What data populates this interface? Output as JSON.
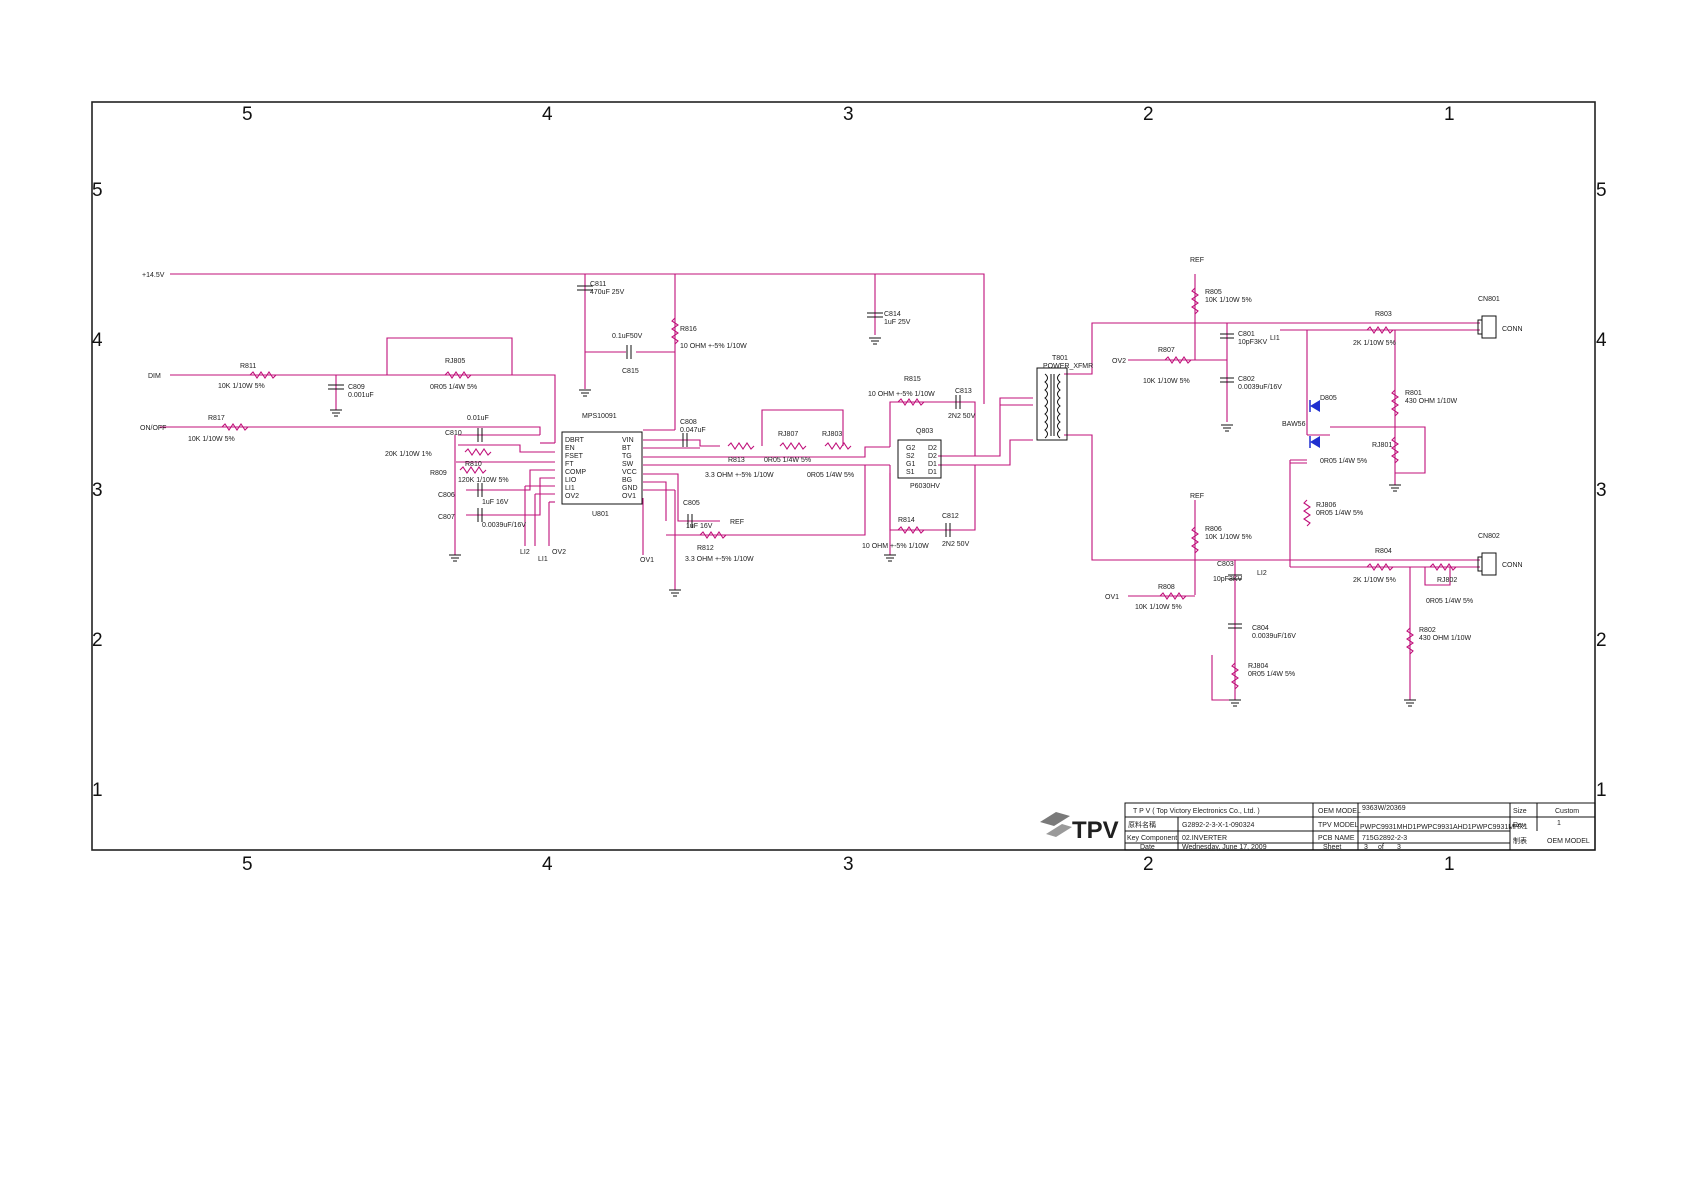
{
  "zones": {
    "columns": [
      "5",
      "4",
      "3",
      "2",
      "1"
    ],
    "rows": [
      "5",
      "4",
      "3",
      "2",
      "1"
    ]
  },
  "net_labels": {
    "v14_5": "+14.5V",
    "dim": "DIM",
    "on_off": "ON/OFF",
    "ref_top": "REF",
    "ref_mid": "REF",
    "ref_u": "REF",
    "ov2_in": "OV2",
    "ov1_in": "OV1",
    "li1_in": "LI1",
    "li2_in": "LI2",
    "li2_pin": "LI2",
    "li1_pin": "LI1",
    "ov2_pin": "OV2",
    "ov1_pin": "OV1",
    "conn1": "CONN",
    "conn2": "CONN"
  },
  "components": {
    "c811": {
      "ref": "C811",
      "value": "470uF 25V"
    },
    "c814": {
      "ref": "C814",
      "value": "1uF 25V"
    },
    "c815": {
      "ref": "C815",
      "value": "0.1uF50V"
    },
    "r816": {
      "ref": "R816",
      "value": "10 OHM +-5% 1/10W"
    },
    "r811": {
      "ref": "R811",
      "value": "10K 1/10W 5%"
    },
    "c809": {
      "ref": "C809",
      "value": "0.001uF"
    },
    "rj805": {
      "ref": "RJ805",
      "value": "0R05 1/4W 5%"
    },
    "r817": {
      "ref": "R817",
      "value": "10K 1/10W 5%"
    },
    "c810": {
      "ref": "C810",
      "value": "0.01uF"
    },
    "r810": {
      "ref": "R810",
      "value": "20K 1/10W 1%"
    },
    "r809": {
      "ref": "R809",
      "value": "120K 1/10W 5%"
    },
    "c806": {
      "ref": "C806",
      "value": "1uF 16V"
    },
    "c807": {
      "ref": "C807",
      "value": "0.0039uF/16V"
    },
    "u801": {
      "ref": "U801",
      "value": "MPS10091",
      "pins_left": [
        "DBRT",
        "EN",
        "FSET",
        "FT",
        "COMP",
        "LIO",
        "LI1",
        "OV2"
      ],
      "pins_right": [
        "VIN",
        "BT",
        "TG",
        "SW",
        "VCC",
        "BG",
        "GND",
        "OV1"
      ]
    },
    "c808": {
      "ref": "C808",
      "value": "0.047uF"
    },
    "c805": {
      "ref": "C805",
      "value": "1uF 16V"
    },
    "r812": {
      "ref": "R812",
      "value": "3.3 OHM +-5% 1/10W"
    },
    "r813": {
      "ref": "R813",
      "value": "3.3 OHM +-5% 1/10W"
    },
    "rj807": {
      "ref": "RJ807",
      "value": "0R05 1/4W 5%"
    },
    "rj803": {
      "ref": "RJ803",
      "value": "0R05 1/4W 5%"
    },
    "r815": {
      "ref": "R815",
      "value": "10 OHM +-5% 1/10W"
    },
    "c813": {
      "ref": "C813",
      "value": "2N2 50V"
    },
    "q803": {
      "ref": "Q803",
      "value": "P6030HV",
      "pins_left": [
        "G2",
        "S2",
        "G1",
        "S1"
      ],
      "pins_right": [
        "D2",
        "D2",
        "D1",
        "D1"
      ]
    },
    "r814": {
      "ref": "R814",
      "value": "10 OHM +-5% 1/10W"
    },
    "c812": {
      "ref": "C812",
      "value": "2N2 50V"
    },
    "t801": {
      "ref": "T801",
      "value": "POWER_XFMR"
    },
    "r805": {
      "ref": "R805",
      "value": "10K 1/10W 5%"
    },
    "c801": {
      "ref": "C801",
      "value": "10pF3KV"
    },
    "r807": {
      "ref": "R807",
      "value": "10K 1/10W 5%"
    },
    "c802": {
      "ref": "C802",
      "value": "0.0039uF/16V"
    },
    "r803": {
      "ref": "R803",
      "value": "2K 1/10W 5%"
    },
    "r801": {
      "ref": "R801",
      "value": "430 OHM 1/10W"
    },
    "d805": {
      "ref": "D805",
      "value": "BAW56"
    },
    "rj801": {
      "ref": "RJ801",
      "value": "0R05 1/4W 5%"
    },
    "rj806": {
      "ref": "RJ806",
      "value": "0R05 1/4W 5%"
    },
    "r806": {
      "ref": "R806",
      "value": "10K 1/10W 5%"
    },
    "c803": {
      "ref": "C803",
      "value": "10pF3KV"
    },
    "r808": {
      "ref": "R808",
      "value": "10K 1/10W 5%"
    },
    "c804": {
      "ref": "C804",
      "value": "0.0039uF/16V"
    },
    "rj804": {
      "ref": "RJ804",
      "value": "0R05 1/4W 5%"
    },
    "r804": {
      "ref": "R804",
      "value": "2K 1/10W 5%"
    },
    "rj802": {
      "ref": "RJ802",
      "value": "0R05 1/4W 5%"
    },
    "r802": {
      "ref": "R802",
      "value": "430 OHM 1/10W"
    },
    "cn801": {
      "ref": "CN801"
    },
    "cn802": {
      "ref": "CN802"
    }
  },
  "title_block": {
    "logo_text": "TPV",
    "company": "T P V  ( Top  Victory  Electronics  Co.,  Ltd. )",
    "oem_model_label": "OEM MODEL",
    "oem_model_value": "9363W/20369",
    "size_label": "Size",
    "size_value": "Custom",
    "project_name_label": "原料名稱",
    "project_name_value": "G2892-2-3-X-1-090324",
    "tpv_model_label": "TPV MODEL",
    "tpv_model_value": "PWPC9931MHD1PWPC9931AHD1PWPC9931MHX1",
    "rev_label": "Rev",
    "rev_value": "1",
    "key_component_label": "Key Component",
    "key_component_value": "02.INVERTER",
    "pcb_name_label": "PCB NAME",
    "pcb_name_value": "715G2892-2-3",
    "drawn_label": "制表",
    "drawn_value": "OEM  MODEL",
    "date_label": "Date",
    "date_value": "Wednesday, June 17, 2009",
    "sheet_label": "Sheet",
    "sheet_value": "3",
    "of_label": "of",
    "total_value": "3"
  }
}
